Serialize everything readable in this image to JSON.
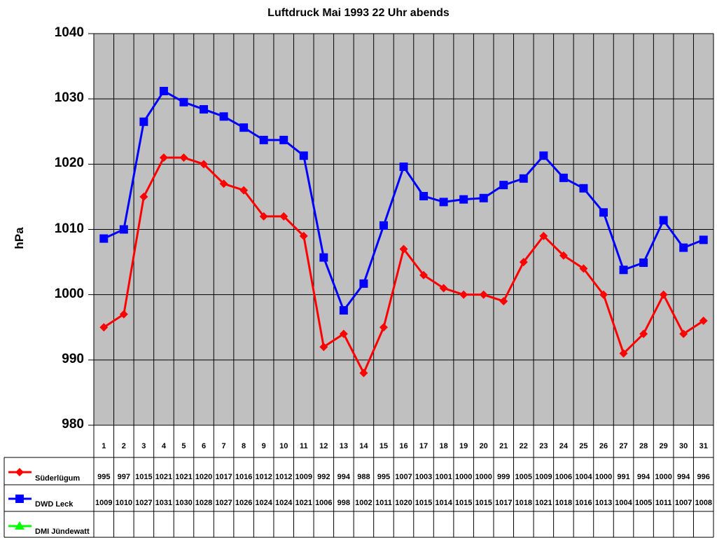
{
  "chart_data": {
    "type": "line",
    "title": "Luftdruck Mai 1993 22 Uhr abends",
    "xlabel": "",
    "ylabel": "hPa",
    "ylim": [
      980,
      1040
    ],
    "yticks": [
      980,
      990,
      1000,
      1010,
      1020,
      1030,
      1040
    ],
    "grid": true,
    "legend_position": "data-table-left",
    "categories": [
      "1",
      "2",
      "3",
      "4",
      "5",
      "6",
      "7",
      "8",
      "9",
      "10",
      "11",
      "12",
      "13",
      "14",
      "15",
      "16",
      "17",
      "18",
      "19",
      "20",
      "21",
      "22",
      "23",
      "24",
      "25",
      "26",
      "27",
      "28",
      "29",
      "30",
      "31"
    ],
    "series": [
      {
        "name": "Süderlügum",
        "color": "#ff0000",
        "marker": "diamond",
        "values": [
          995,
          997,
          1015,
          1021,
          1021,
          1020,
          1017,
          1016,
          1012,
          1012,
          1009,
          992,
          994,
          988,
          995,
          1007,
          1003,
          1001,
          1000,
          1000,
          999,
          1005,
          1009,
          1006,
          1004,
          1000,
          991,
          994,
          1000,
          994,
          996
        ]
      },
      {
        "name": "DWD Leck",
        "color": "#0000ff",
        "marker": "square",
        "values": [
          1009,
          1010,
          1027,
          1031,
          1030,
          1028,
          1027,
          1026,
          1024,
          1024,
          1021,
          1006,
          998,
          1002,
          1011,
          1020,
          1015,
          1014,
          1015,
          1015,
          1017,
          1018,
          1021,
          1018,
          1016,
          1013,
          1004,
          1005,
          1011,
          1007,
          1008
        ]
      },
      {
        "name": "DMI Jündewatt",
        "color": "#00ff00",
        "marker": "triangle",
        "values": []
      }
    ],
    "plot_values_precise": {
      "DWD Leck": [
        1008.6,
        1010,
        1026.5,
        1031.2,
        1029.5,
        1028.4,
        1027.3,
        1025.6,
        1023.7,
        1023.7,
        1021.3,
        1005.7,
        997.6,
        1001.7,
        1010.6,
        1019.6,
        1015.1,
        1014.2,
        1014.6,
        1014.8,
        1016.8,
        1017.8,
        1021.3,
        1017.9,
        1016.3,
        1012.6,
        1003.8,
        1004.9,
        1011.4,
        1007.2,
        1008.4
      ]
    }
  },
  "table": {
    "header": [
      "1",
      "2",
      "3",
      "4",
      "5",
      "6",
      "7",
      "8",
      "9",
      "10",
      "11",
      "12",
      "13",
      "14",
      "15",
      "16",
      "17",
      "18",
      "19",
      "20",
      "21",
      "22",
      "23",
      "24",
      "25",
      "26",
      "27",
      "28",
      "29",
      "30",
      "31"
    ],
    "rows": [
      {
        "label": "Süderlügum",
        "values": [
          "995",
          "997",
          "1015",
          "1021",
          "1021",
          "1020",
          "1017",
          "1016",
          "1012",
          "1012",
          "1009",
          "992",
          "994",
          "988",
          "995",
          "1007",
          "1003",
          "1001",
          "1000",
          "1000",
          "999",
          "1005",
          "1009",
          "1006",
          "1004",
          "1000",
          "991",
          "994",
          "1000",
          "994",
          "996"
        ]
      },
      {
        "label": "DWD Leck",
        "values": [
          "1009",
          "1010",
          "1027",
          "1031",
          "1030",
          "1028",
          "1027",
          "1026",
          "1024",
          "1024",
          "1021",
          "1006",
          "998",
          "1002",
          "1011",
          "1020",
          "1015",
          "1014",
          "1015",
          "1015",
          "1017",
          "1018",
          "1021",
          "1018",
          "1016",
          "1013",
          "1004",
          "1005",
          "1011",
          "1007",
          "1008"
        ]
      },
      {
        "label": "DMI Jündewatt",
        "values": []
      }
    ]
  },
  "colors": {
    "plot_bg": "#c0c0c0",
    "grid": "#000000"
  }
}
